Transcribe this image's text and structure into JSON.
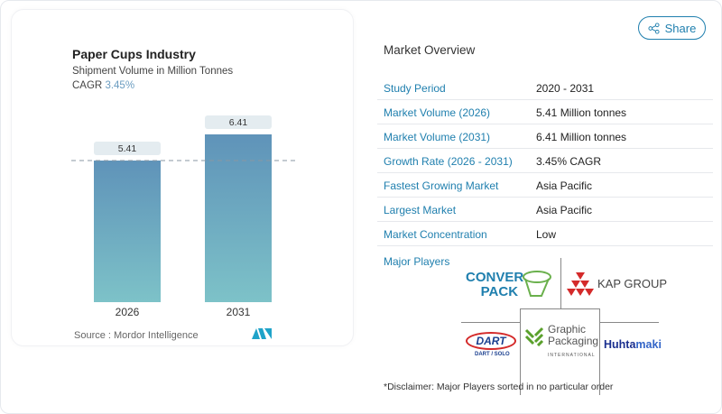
{
  "header": {
    "share_label": "Share",
    "share_icon": "share-icon"
  },
  "chart_card": {
    "title": "Paper Cups Industry",
    "subtitle": "Shipment Volume in Million Tonnes",
    "cagr_label": "CAGR",
    "cagr_value": "3.45%",
    "source": "Source :  Mordor Intelligence"
  },
  "chart_data": {
    "type": "bar",
    "title": "Paper Cups Industry",
    "subtitle": "Shipment Volume in Million Tonnes",
    "categories": [
      "2026",
      "2031"
    ],
    "values": [
      5.41,
      6.41
    ],
    "data_labels": [
      "5.41",
      "6.41"
    ],
    "ylim": [
      0,
      6.41
    ],
    "reference_line": 5.41,
    "grid": false,
    "colors": {
      "bar_top": "#5f93b9",
      "bar_bottom": "#7dc2c8"
    }
  },
  "overview": {
    "title": "Market Overview",
    "rows": [
      {
        "label": "Study Period",
        "value": "2020 - 2031"
      },
      {
        "label": "Market Volume (2026)",
        "value": "5.41 Million tonnes"
      },
      {
        "label": "Market Volume (2031)",
        "value": "6.41 Million tonnes"
      },
      {
        "label": "Growth Rate (2026 - 2031)",
        "value": "3.45% CAGR"
      },
      {
        "label": "Fastest Growing Market",
        "value": "Asia Pacific"
      },
      {
        "label": "Largest Market",
        "value": "Asia Pacific"
      },
      {
        "label": "Market Concentration",
        "value": "Low"
      }
    ]
  },
  "players": {
    "title": "Major Players",
    "logos": [
      "CONVERPACK",
      "KAP GROUP",
      "DART",
      "Graphic Packaging International",
      "Huhtamaki"
    ],
    "disclaimer": "*Disclaimer: Major Players sorted in no particular order"
  },
  "accent": "#1f7fae"
}
